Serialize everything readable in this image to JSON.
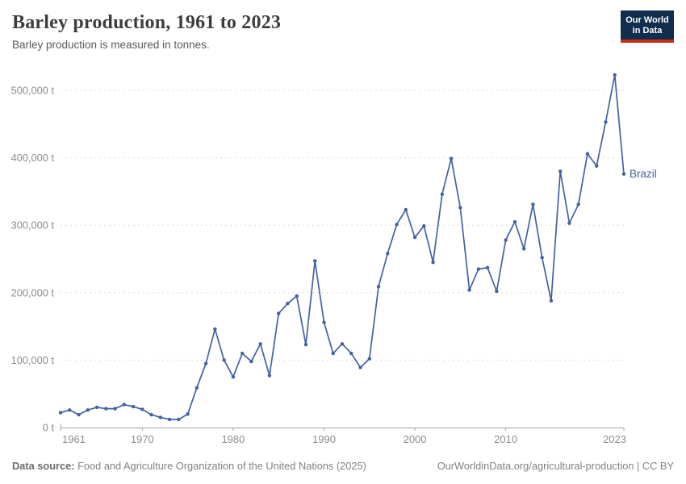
{
  "header": {
    "title": "Barley production, 1961 to 2023",
    "subtitle": "Barley production is measured in tonnes.",
    "logo": {
      "line1": "Our World",
      "line2": "in Data",
      "bg": "#102d4e",
      "bar": "#cc2b16"
    }
  },
  "chart_data": {
    "type": "line",
    "title": "Barley production, 1961 to 2023",
    "subtitle": "Barley production is measured in tonnes.",
    "unit": "tonnes",
    "x_range": [
      1961,
      2023
    ],
    "ylim": [
      0,
      500000
    ],
    "grid": true,
    "legend_position": "end-of-line-label",
    "entity_label": "Brazil",
    "x_ticks": [
      1961,
      1970,
      1980,
      1990,
      2000,
      2010,
      2023
    ],
    "y_ticks": [
      {
        "value": 0,
        "label": "0 t"
      },
      {
        "value": 100000,
        "label": "100,000 t"
      },
      {
        "value": 200000,
        "label": "200,000 t"
      },
      {
        "value": 300000,
        "label": "300,000 t"
      },
      {
        "value": 400000,
        "label": "400,000 t"
      },
      {
        "value": 500000,
        "label": "500,000 t"
      }
    ],
    "series": [
      {
        "name": "Brazil",
        "color": "#4262a2",
        "x": [
          1961,
          1962,
          1963,
          1964,
          1965,
          1966,
          1967,
          1968,
          1969,
          1970,
          1971,
          1972,
          1973,
          1974,
          1975,
          1976,
          1977,
          1978,
          1979,
          1980,
          1981,
          1982,
          1983,
          1984,
          1985,
          1986,
          1987,
          1988,
          1989,
          1990,
          1991,
          1992,
          1993,
          1994,
          1995,
          1996,
          1997,
          1998,
          1999,
          2000,
          2001,
          2002,
          2003,
          2004,
          2005,
          2006,
          2007,
          2008,
          2009,
          2010,
          2011,
          2012,
          2013,
          2014,
          2015,
          2016,
          2017,
          2018,
          2019,
          2020,
          2021,
          2022,
          2023
        ],
        "values": [
          22000,
          26000,
          19000,
          26000,
          30000,
          28000,
          28000,
          34000,
          31000,
          27000,
          19000,
          15000,
          12000,
          12000,
          20000,
          59000,
          95000,
          146000,
          100000,
          75000,
          110000,
          98000,
          124000,
          77000,
          169000,
          184000,
          195000,
          123000,
          247000,
          156000,
          110000,
          124000,
          110000,
          89000,
          102000,
          209000,
          258000,
          301000,
          323000,
          282000,
          299000,
          245000,
          346000,
          399000,
          326000,
          204000,
          235000,
          237000,
          202000,
          278000,
          305000,
          265000,
          331000,
          252000,
          188000,
          380000,
          303000,
          331000,
          406000,
          388000,
          453000,
          523000,
          376000
        ]
      }
    ]
  },
  "footer": {
    "source_prefix": "Data source:",
    "source_text": "Food and Agriculture Organization of the United Nations (2025)",
    "credit": "OurWorldinData.org/agricultural-production | CC BY"
  }
}
